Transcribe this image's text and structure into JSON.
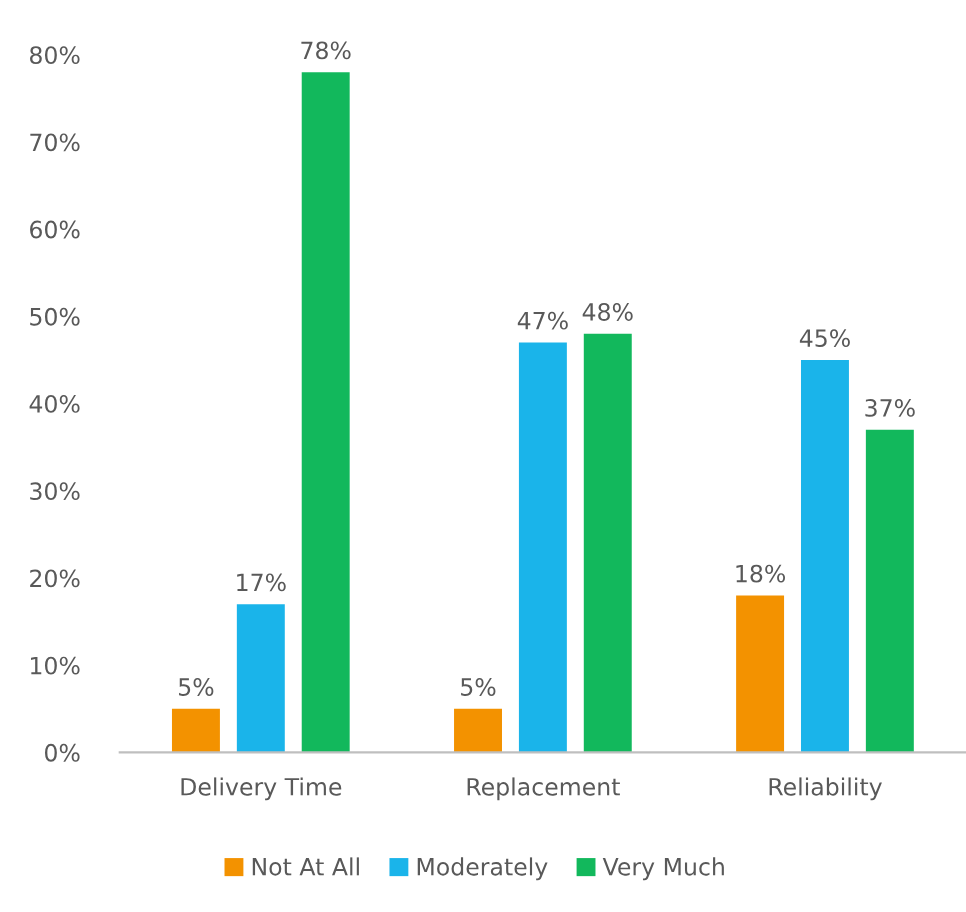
{
  "chart_data": {
    "type": "bar",
    "categories": [
      "Delivery Time",
      "Replacement",
      "Reliability"
    ],
    "series": [
      {
        "name": "Not At All",
        "color": "#f39200",
        "values": [
          5,
          5,
          18
        ],
        "value_labels": [
          "5%",
          "5%",
          "18%"
        ]
      },
      {
        "name": "Moderately",
        "color": "#1ab4ea",
        "values": [
          17,
          47,
          45
        ],
        "value_labels": [
          "17%",
          "47%",
          "45%"
        ]
      },
      {
        "name": "Very Much",
        "color": "#12b85c",
        "values": [
          78,
          48,
          37
        ],
        "value_labels": [
          "78%",
          "48%",
          "37%"
        ]
      }
    ],
    "ylim": [
      0,
      80
    ],
    "yticks": [
      {
        "value": 0,
        "label": "0%"
      },
      {
        "value": 10,
        "label": "10%"
      },
      {
        "value": 20,
        "label": "20%"
      },
      {
        "value": 30,
        "label": "30%"
      },
      {
        "value": 40,
        "label": "40%"
      },
      {
        "value": 50,
        "label": "50%"
      },
      {
        "value": 60,
        "label": "60%"
      },
      {
        "value": 70,
        "label": "70%"
      },
      {
        "value": 80,
        "label": "80%"
      }
    ],
    "grid": false,
    "legend": "bottom"
  }
}
